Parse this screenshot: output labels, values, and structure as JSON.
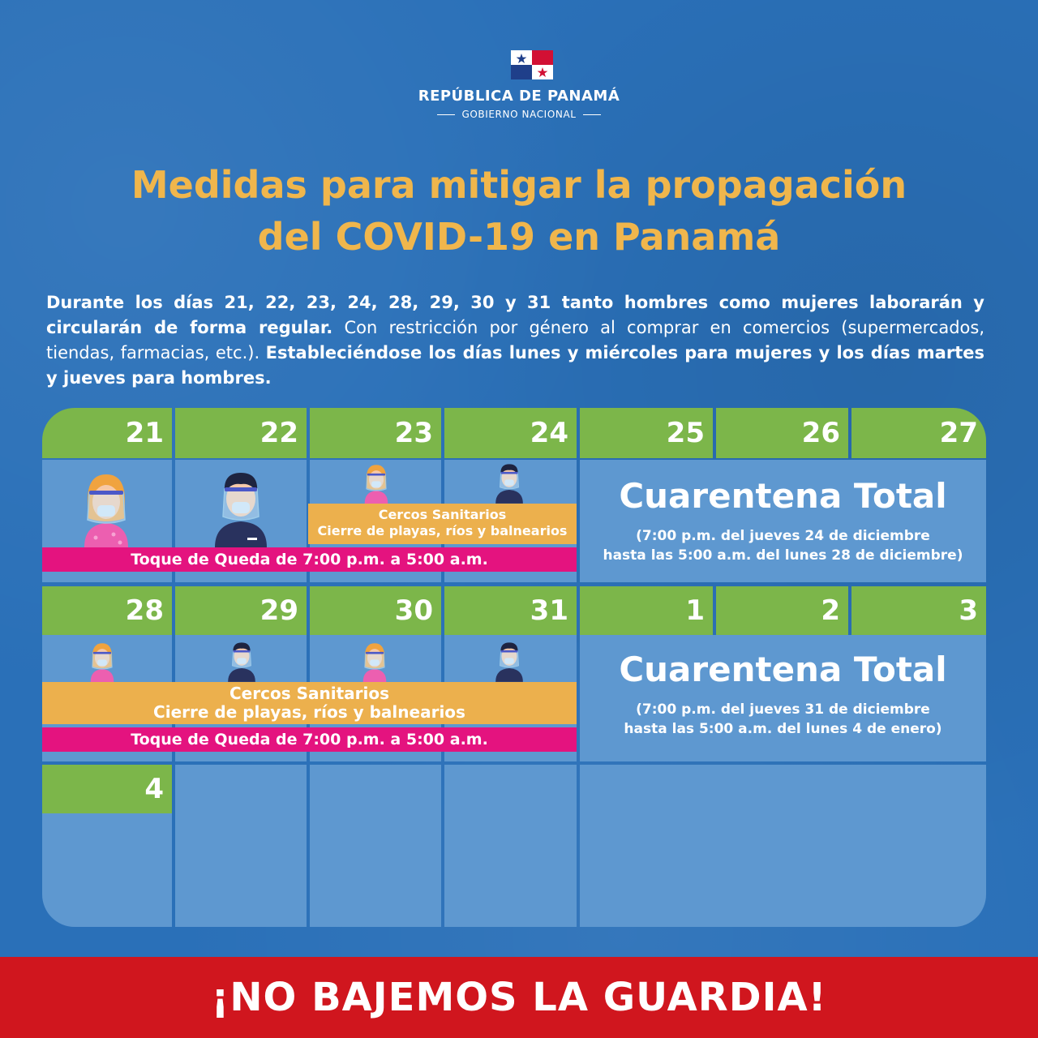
{
  "header": {
    "country": "REPÚBLICA DE PANAMÁ",
    "government": "GOBIERNO NACIONAL",
    "flag_icon": "panama-flag-icon",
    "colors": {
      "flag_red": "#d21034",
      "flag_blue": "#005293"
    }
  },
  "title": {
    "line1": "Medidas para mitigar la propagación",
    "line2": "del COVID-19 en Panamá",
    "color": "#f0b64c"
  },
  "intro": {
    "part1_bold": "Durante los días 21, 22, 23, 24, 28, 29, 30 y 31 tanto hombres como mujeres laborarán y circularán de forma regular.",
    "part2": " Con restricción por género al comprar en comercios (supermercados, tiendas, farmacias, etc.). ",
    "part3_bold": "Estableciéndose los días lunes y miércoles para mujeres y los días martes y jueves para hombres."
  },
  "calendar": {
    "week1": [
      "21",
      "22",
      "23",
      "24",
      "25",
      "26",
      "27"
    ],
    "week2": [
      "28",
      "29",
      "30",
      "31",
      "1",
      "2",
      "3"
    ],
    "week3": [
      "4"
    ],
    "cercos_title": "Cercos Sanitarios",
    "cercos_sub": "Cierre de playas, ríos y balnearios",
    "toque": "Toque de Queda de 7:00 p.m. a 5:00 a.m.",
    "cuarentena_label": "Cuarentena Total",
    "cuarentena1_line1": "(7:00 p.m. del jueves 24 de diciembre",
    "cuarentena1_line2": "hasta las 5:00 a.m. del lunes 28 de diciembre)",
    "cuarentena2_line1": "(7:00 p.m. del jueves 31 de diciembre",
    "cuarentena2_line2": "hasta las 5:00 a.m. del lunes 4 de enero)",
    "icons": {
      "woman": "woman-face-shield-icon",
      "man": "man-face-shield-icon"
    },
    "colors": {
      "header_green": "#7cb64a",
      "cell_blue": "#5e98d0",
      "curfew_pink": "#e4137f",
      "cercos_orange": "#ecb04d"
    }
  },
  "footer": {
    "slogan": "¡NO BAJEMOS LA GUARDIA!",
    "color": "#d0161e"
  }
}
